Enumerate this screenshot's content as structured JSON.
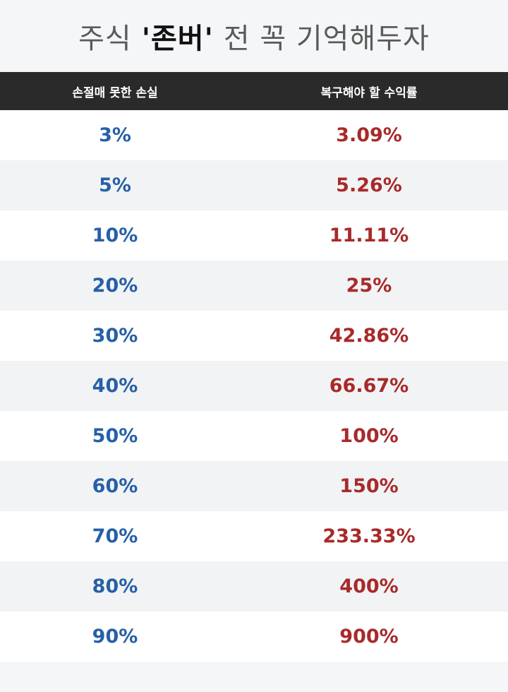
{
  "title": {
    "prefix": "주식",
    "emphasis": "'존버'",
    "suffix": "전 꼭 기억해두자"
  },
  "table": {
    "headers": {
      "loss": "손절매 못한 손실",
      "recovery": "복구해야 할 수익률"
    },
    "rows": [
      {
        "loss": "3%",
        "recovery": "3.09%"
      },
      {
        "loss": "5%",
        "recovery": "5.26%"
      },
      {
        "loss": "10%",
        "recovery": "11.11%"
      },
      {
        "loss": "20%",
        "recovery": "25%"
      },
      {
        "loss": "30%",
        "recovery": "42.86%"
      },
      {
        "loss": "40%",
        "recovery": "66.67%"
      },
      {
        "loss": "50%",
        "recovery": "100%"
      },
      {
        "loss": "60%",
        "recovery": "150%"
      },
      {
        "loss": "70%",
        "recovery": "233.33%"
      },
      {
        "loss": "80%",
        "recovery": "400%"
      },
      {
        "loss": "90%",
        "recovery": "900%"
      }
    ]
  },
  "colors": {
    "loss_text": "#2660a8",
    "recovery_text": "#a82a2a",
    "header_bg": "#2a2a2a"
  }
}
